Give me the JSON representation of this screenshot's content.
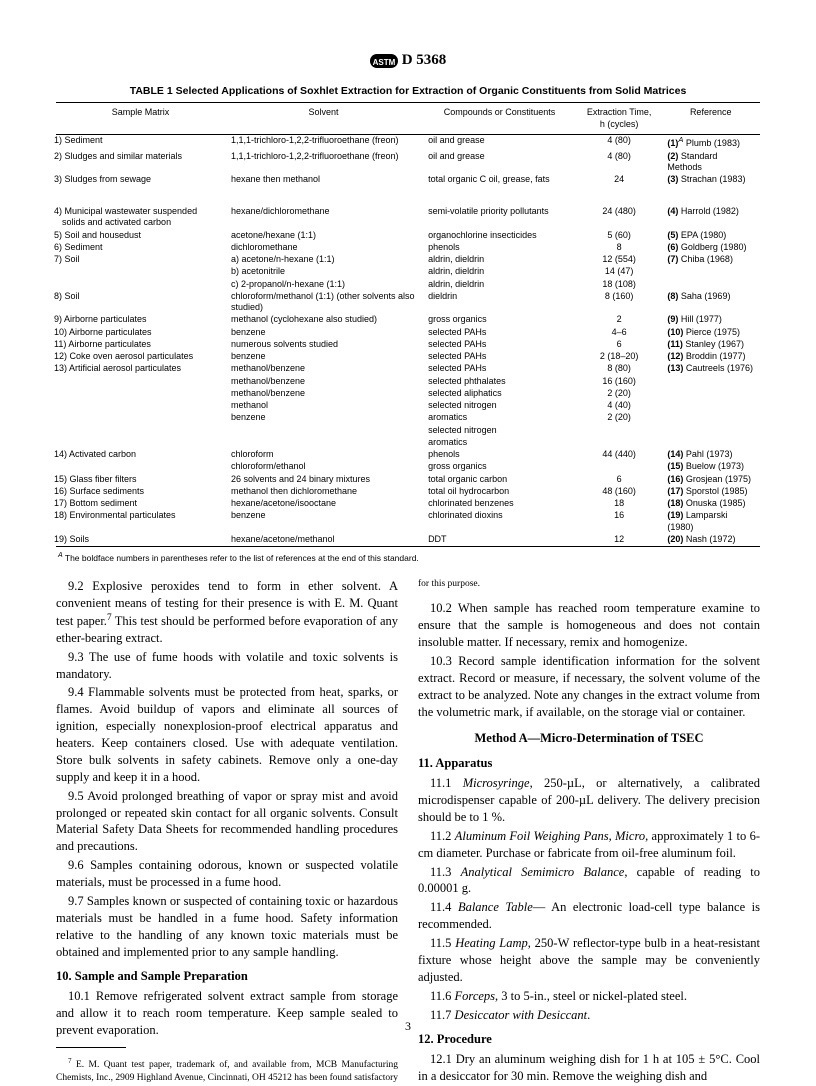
{
  "doc_number": "D 5368",
  "table1": {
    "caption": "TABLE 1  Selected Applications of Soxhlet Extraction for Extraction of Organic Constituents from Solid Matrices",
    "columns": [
      "Sample Matrix",
      "Solvent",
      "Compounds or Constituents",
      "Extraction Time,\nh (cycles)",
      "Reference"
    ],
    "rows": [
      {
        "n": "1)",
        "matrix": "Sediment",
        "solvent": "1,1,1-trichloro-1,2,2-trifluoroethane (freon)",
        "compound": "oil and grease",
        "time": "4 (80)",
        "ref_n": "(1)",
        "ref_sup": "A",
        "ref_t": " Plumb (1983)"
      },
      {
        "n": "2)",
        "matrix": "Sludges and similar materials",
        "solvent": "1,1,1-trichloro-1,2,2-trifluoroethane (freon)",
        "compound": "oil and grease",
        "time": "4 (80)",
        "ref_n": "(2)",
        "ref_t": " Standard Methods"
      },
      {
        "n": "3)",
        "matrix": "Sludges from sewage",
        "solvent": "hexane then methanol",
        "compound": "total organic C oil, grease, fats",
        "time": "24",
        "ref_n": "(3)",
        "ref_t": " Strachan (1983)"
      },
      {
        "gap": true
      },
      {
        "n": "4)",
        "matrix": "Municipal wastewater suspended solids and activated carbon",
        "solvent": "hexane/dichloromethane",
        "compound": "semi-volatile priority pollutants",
        "time": "24 (480)",
        "ref_n": "(4)",
        "ref_t": " Harrold (1982)"
      },
      {
        "n": "5)",
        "matrix": "Soil and housedust",
        "solvent": "acetone/hexane (1:1)",
        "compound": "organochlorine insecticides",
        "time": "5 (60)",
        "ref_n": "(5)",
        "ref_t": " EPA (1980)"
      },
      {
        "n": "6)",
        "matrix": "Sediment",
        "solvent": "dichloromethane",
        "compound": "phenols",
        "time": "8",
        "ref_n": "(6)",
        "ref_t": " Goldberg (1980)"
      },
      {
        "n": "7)",
        "matrix": "Soil",
        "solvent": "a) acetone/n-hexane (1:1)",
        "compound": "aldrin, dieldrin",
        "time": "12 (554)",
        "ref_n": "(7)",
        "ref_t": " Chiba (1968)"
      },
      {
        "n": "",
        "matrix": "",
        "solvent": "b) acetonitrile",
        "compound": "aldrin, dieldrin",
        "time": "14 (47)",
        "ref_n": "",
        "ref_t": ""
      },
      {
        "n": "",
        "matrix": "",
        "solvent": "c) 2-propanol/n-hexane (1:1)",
        "compound": "aldrin, dieldrin",
        "time": "18 (108)",
        "ref_n": "",
        "ref_t": ""
      },
      {
        "n": "8)",
        "matrix": "Soil",
        "solvent": "chloroform/methanol (1:1) (other solvents also studied)",
        "compound": "dieldrin",
        "time": "8 (160)",
        "ref_n": "(8)",
        "ref_t": " Saha (1969)"
      },
      {
        "n": "9)",
        "matrix": "Airborne particulates",
        "solvent": "methanol (cyclohexane also studied)",
        "compound": "gross organics",
        "time": "2",
        "ref_n": "(9)",
        "ref_t": " Hill (1977)"
      },
      {
        "n": "10)",
        "matrix": "Airborne particulates",
        "solvent": "benzene",
        "compound": "selected PAHs",
        "time": "4–6",
        "ref_n": "(10)",
        "ref_t": " Pierce (1975)"
      },
      {
        "n": "11)",
        "matrix": "Airborne particulates",
        "solvent": "numerous solvents studied",
        "compound": "selected PAHs",
        "time": "6",
        "ref_n": "(11)",
        "ref_t": " Stanley (1967)"
      },
      {
        "n": "12)",
        "matrix": "Coke oven aerosol particulates",
        "solvent": "benzene",
        "compound": "selected PAHs",
        "time": "2 (18–20)",
        "ref_n": "(12)",
        "ref_t": " Broddin (1977)"
      },
      {
        "n": "13)",
        "matrix": "Artificial aerosol particulates",
        "solvent": "methanol/benzene",
        "compound": "selected PAHs",
        "time": "8 (80)",
        "ref_n": "(13)",
        "ref_t": " Cautreels (1976)"
      },
      {
        "n": "",
        "matrix": "",
        "solvent": "methanol/benzene",
        "compound": "selected phthalates",
        "time": "16 (160)",
        "ref_n": "",
        "ref_t": ""
      },
      {
        "n": "",
        "matrix": "",
        "solvent": "methanol/benzene",
        "compound": "selected aliphatics",
        "time": "2 (20)",
        "ref_n": "",
        "ref_t": ""
      },
      {
        "n": "",
        "matrix": "",
        "solvent": "methanol",
        "compound": "selected nitrogen",
        "time": "4 (40)",
        "ref_n": "",
        "ref_t": ""
      },
      {
        "n": "",
        "matrix": "",
        "solvent": "benzene",
        "compound": "aromatics",
        "time": "2 (20)",
        "ref_n": "",
        "ref_t": ""
      },
      {
        "n": "",
        "matrix": "",
        "solvent": "",
        "compound": "selected nitrogen",
        "time": "",
        "ref_n": "",
        "ref_t": ""
      },
      {
        "n": "",
        "matrix": "",
        "solvent": "",
        "compound": "aromatics",
        "time": "",
        "ref_n": "",
        "ref_t": ""
      },
      {
        "n": "14)",
        "matrix": "Activated carbon",
        "solvent": "chloroform",
        "compound": "phenols",
        "time": "44 (440)",
        "ref_n": "(14)",
        "ref_t": " Pahl (1973)"
      },
      {
        "n": "",
        "matrix": "",
        "solvent": "chloroform/ethanol",
        "compound": "gross organics",
        "time": "",
        "ref_n": "(15)",
        "ref_t": " Buelow (1973)"
      },
      {
        "n": "15)",
        "matrix": "Glass fiber filters",
        "solvent": "26 solvents and 24 binary mixtures",
        "compound": "total organic carbon",
        "time": "6",
        "ref_n": "(16)",
        "ref_t": " Grosjean (1975)"
      },
      {
        "n": "16)",
        "matrix": "Surface sediments",
        "solvent": "methanol then dichloromethane",
        "compound": "total oil hydrocarbon",
        "time": "48 (160)",
        "ref_n": "(17)",
        "ref_t": " Sporstol (1985)"
      },
      {
        "n": "17)",
        "matrix": "Bottom sediment",
        "solvent": "hexane/acetone/isooctane",
        "compound": "chlorinated benzenes",
        "time": "18",
        "ref_n": "(18)",
        "ref_t": " Onuska (1985)"
      },
      {
        "n": "18)",
        "matrix": "Environmental particulates",
        "solvent": "benzene",
        "compound": "chlorinated dioxins",
        "time": "16",
        "ref_n": "(19)",
        "ref_t": " Lamparski (1980)"
      },
      {
        "n": "19)",
        "matrix": "Soils",
        "solvent": "hexane/acetone/methanol",
        "compound": "DDT",
        "time": "12",
        "ref_n": "(20)",
        "ref_t": " Nash (1972)"
      }
    ],
    "footnote_sup": "A",
    "footnote_text": " The boldface numbers in parentheses refer to the list of references at the end of this standard."
  },
  "body": {
    "p9_2": "9.2 Explosive peroxides tend to form in ether solvent. A convenient means of testing for their presence is with E. M. Quant test paper.",
    "p9_2_sup7": "7",
    "p9_2b": " This test should be performed before evaporation of any ether-bearing extract.",
    "p9_3": "9.3 The use of fume hoods with volatile and toxic solvents is mandatory.",
    "p9_4": "9.4 Flammable solvents must be protected from heat, sparks, or flames. Avoid buildup of vapors and eliminate all sources of ignition, especially nonexplosion-proof electrical apparatus and heaters. Keep containers closed. Use with adequate ventilation. Store bulk solvents in safety cabinets. Remove only a one-day supply and keep it in a hood.",
    "p9_5": "9.5 Avoid prolonged breathing of vapor or spray mist and avoid prolonged or repeated skin contact for all organic solvents. Consult Material Safety Data Sheets for recommended handling procedures and precautions.",
    "p9_6": "9.6 Samples containing odorous, known or suspected volatile materials, must be processed in a fume hood.",
    "p9_7": "9.7 Samples known or suspected of containing toxic or hazardous materials must be handled in a fume hood. Safety information relative to the handling of any known toxic materials must be obtained and implemented prior to any sample handling.",
    "s10_head": "10. Sample and Sample Preparation",
    "p10_1": "10.1 Remove refrigerated solvent extract sample from storage and allow it to reach room temperature. Keep sample sealed to prevent evaporation.",
    "p10_2": "10.2 When sample has reached room temperature examine to ensure that the sample is homogeneous and does not contain insoluble matter. If necessary, remix and homogenize.",
    "p10_3": "10.3 Record sample identification information for the solvent extract. Record or measure, if necessary, the solvent volume of the extract to be analyzed. Note any changes in the extract volume from the volumetric mark, if available, on the storage vial or container.",
    "methodA_head": "Method A—Micro-Determination of TSEC",
    "s11_head": "11. Apparatus",
    "p11_1a": "11.1 ",
    "p11_1_it": "Microsyringe",
    "p11_1b": ", 250-µL, or alternatively, a calibrated microdispenser capable of 200-µL delivery. The delivery precision should be to 1 %.",
    "p11_2a": "11.2 ",
    "p11_2_it": "Aluminum Foil Weighing Pans, Micro",
    "p11_2b": ", approximately 1 to 6-cm diameter. Purchase or fabricate from oil-free aluminum foil.",
    "p11_3a": "11.3 ",
    "p11_3_it": "Analytical Semimicro Balance",
    "p11_3b": ", capable of reading to 0.00001 g.",
    "p11_4a": "11.4 ",
    "p11_4_it": "Balance Table",
    "p11_4b": "— An electronic load-cell type balance is recommended.",
    "p11_5a": "11.5 ",
    "p11_5_it": "Heating Lamp",
    "p11_5b": ", 250-W reflector-type bulb in a heat-resistant fixture whose height above the sample may be conveniently adjusted.",
    "p11_6a": "11.6 ",
    "p11_6_it": "Forceps",
    "p11_6b": ", 3 to 5-in., steel or nickel-plated steel.",
    "p11_7a": "11.7 ",
    "p11_7_it": "Desiccator with Desiccant",
    "p11_7b": ".",
    "s12_head": "12. Procedure",
    "p12_1": "12.1 Dry an aluminum weighing dish for 1 h at 105 ± 5°C. Cool in a desiccator for 30 min. Remove the weighing dish and",
    "fn7_sup": "7",
    "fn7_text": " E. M. Quant test paper, trademark of, and available from, MCB Manufacturing Chemists, Inc., 2909 Highland Avenue, Cincinnati, OH 45212 has been found satisfactory for this purpose."
  },
  "page_number": "3"
}
